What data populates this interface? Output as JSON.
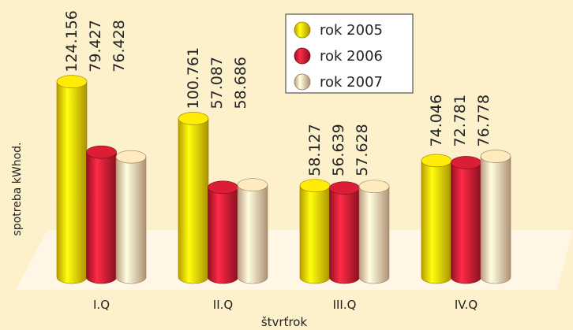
{
  "chart_data": {
    "type": "cylinder-bar",
    "categories": [
      "I.Q",
      "II.Q",
      "III.Q",
      "IV.Q"
    ],
    "series": [
      {
        "name": "rok 2005",
        "color": "#f6d000",
        "values": [
          124.156,
          100.761,
          58.127,
          74.046
        ]
      },
      {
        "name": "rok 2006",
        "color": "#c2162c",
        "values": [
          79.427,
          57.087,
          56.639,
          72.781
        ]
      },
      {
        "name": "rok 2007",
        "color": "#f9cfa6",
        "values": [
          76.428,
          58.686,
          57.628,
          76.778
        ]
      }
    ],
    "y_label": "spotreba kWhod.",
    "x_label": "štvrťrok"
  }
}
